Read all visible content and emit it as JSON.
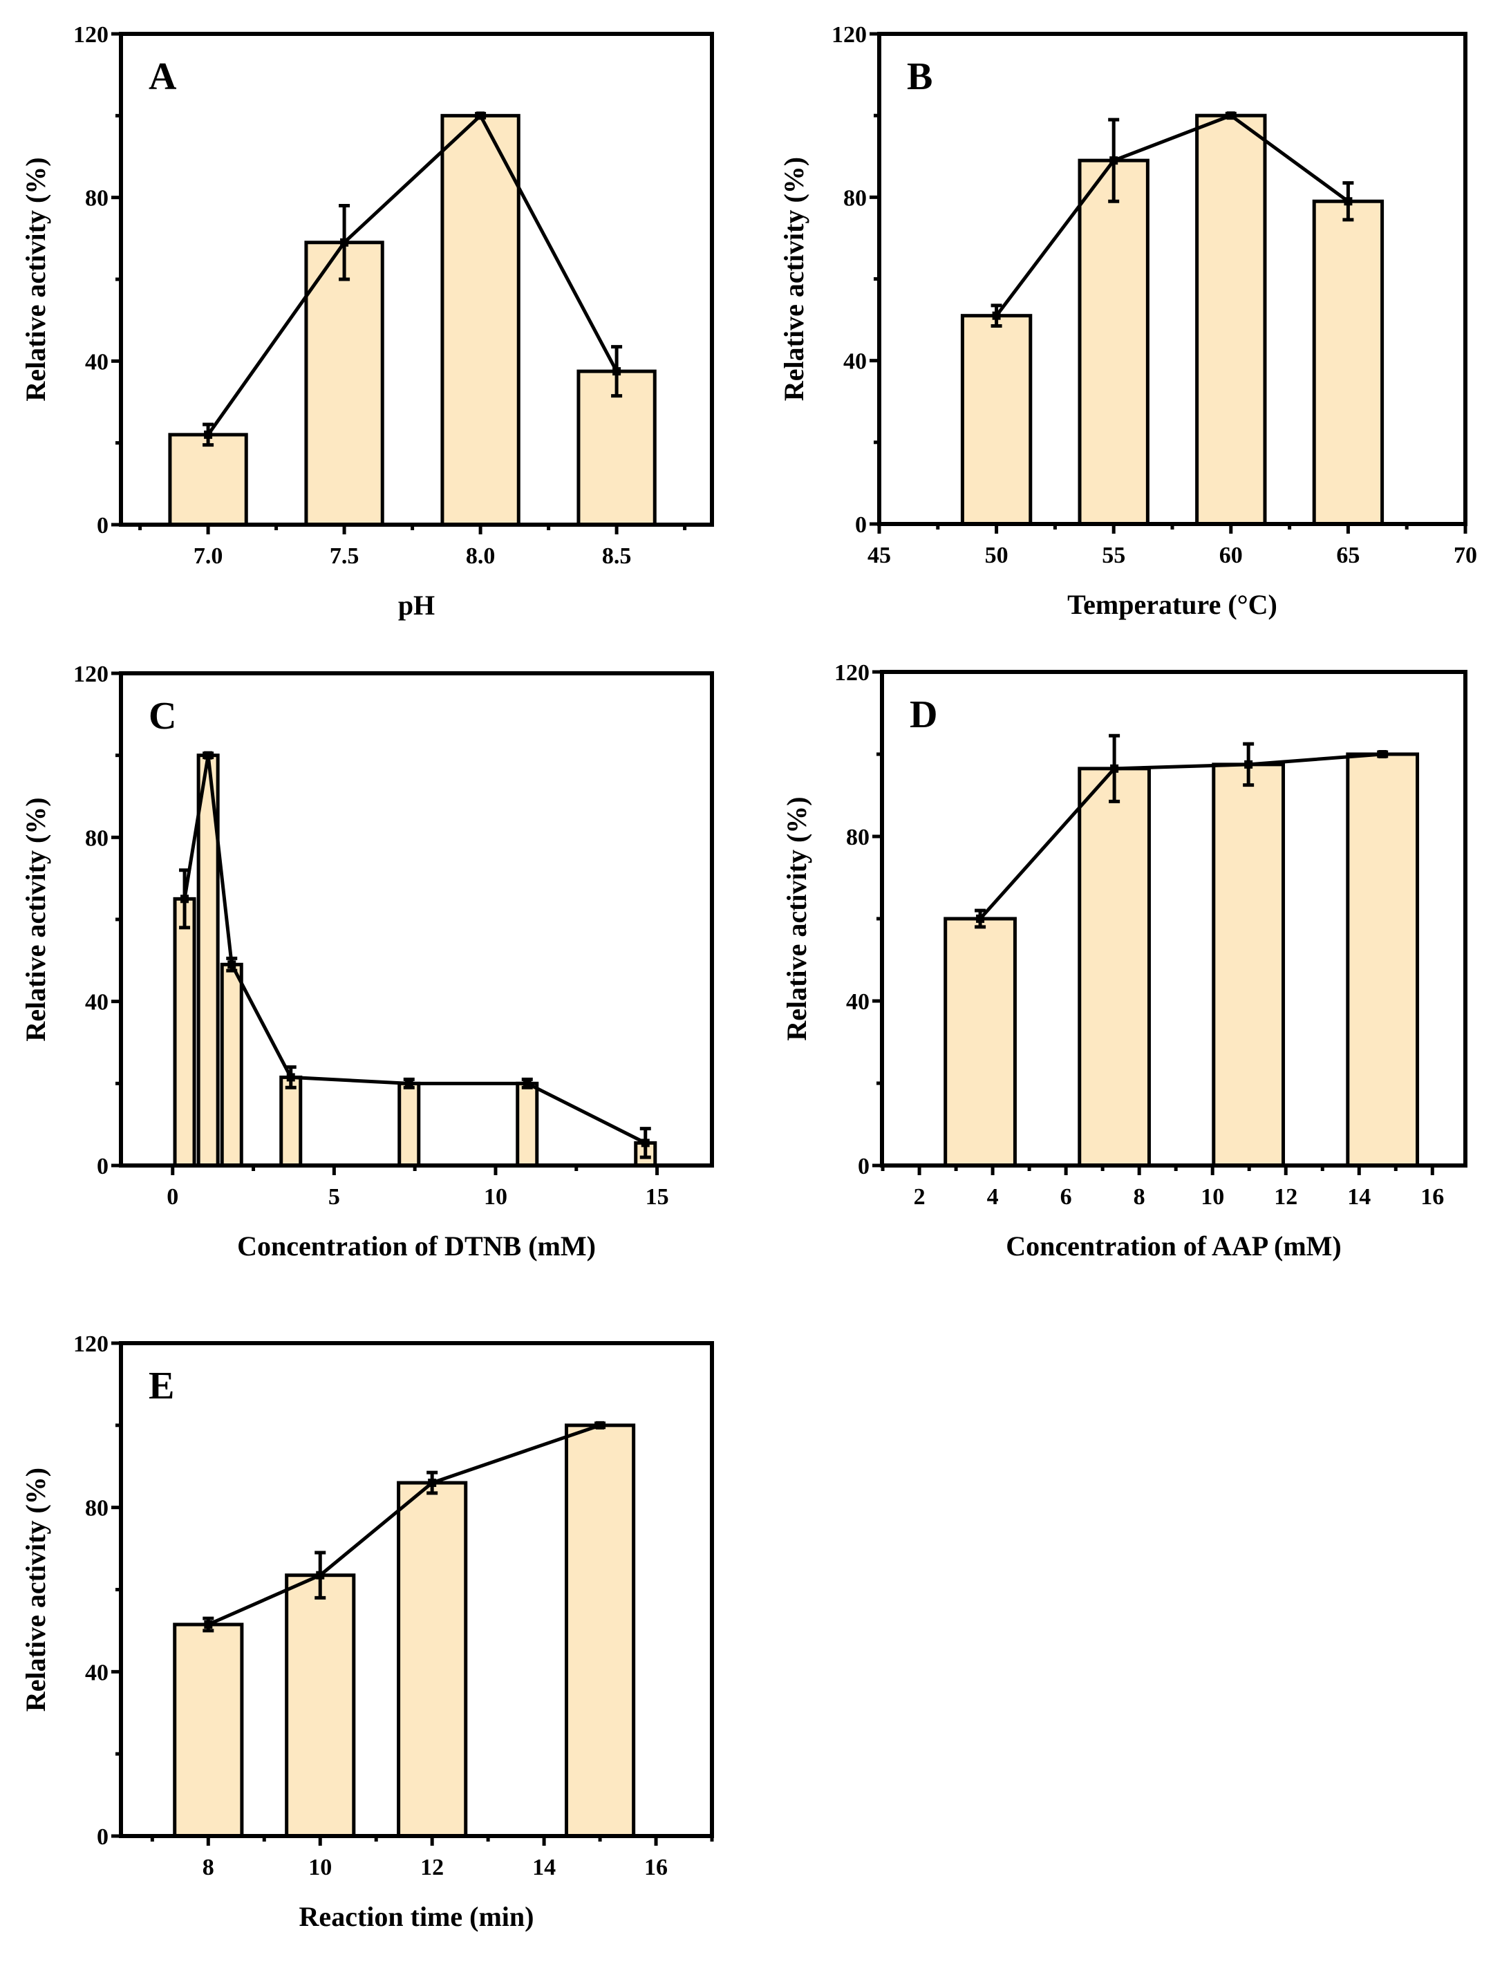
{
  "colors": {
    "bar_fill": "#FDE8C2",
    "stroke": "#000000"
  },
  "chart_data": [
    {
      "type": "bar",
      "panel_label": "A",
      "xlabel": "pH",
      "ylabel": "Relative activity (%)",
      "xlim": [
        6.68,
        8.85
      ],
      "ylim": [
        0,
        120
      ],
      "xticks": [
        7.0,
        7.5,
        8.0,
        8.5
      ],
      "xtick_labels": [
        "7.0",
        "7.5",
        "8.0",
        "8.5"
      ],
      "yticks": [
        0,
        40,
        80,
        120
      ],
      "bar_width": 0.28,
      "x": [
        7.0,
        7.5,
        8.0,
        8.5
      ],
      "values": [
        22,
        69,
        100,
        37.5
      ],
      "errors": [
        2.5,
        9,
        0.5,
        6
      ]
    },
    {
      "type": "bar",
      "panel_label": "B",
      "xlabel": "Temperature (°C)",
      "ylabel": "Relative activity (%)",
      "xlim": [
        45,
        70
      ],
      "ylim": [
        0,
        120
      ],
      "xticks": [
        45,
        50,
        55,
        60,
        65,
        70
      ],
      "xtick_labels": [
        "45",
        "50",
        "55",
        "60",
        "65",
        "70"
      ],
      "yticks": [
        0,
        40,
        80,
        120
      ],
      "bar_width": 2.9,
      "x": [
        50,
        55,
        60,
        65
      ],
      "values": [
        51,
        89,
        100,
        79
      ],
      "errors": [
        2.5,
        10,
        0.5,
        4.5
      ]
    },
    {
      "type": "bar",
      "panel_label": "C",
      "xlabel": "Concentration of DTNB (mM)",
      "ylabel": "Relative activity (%)",
      "xlim": [
        -1.6,
        16.7
      ],
      "ylim": [
        0,
        120
      ],
      "xticks": [
        0,
        5,
        10,
        15
      ],
      "xtick_labels": [
        "0",
        "5",
        "10",
        "15"
      ],
      "yticks": [
        0,
        40,
        80,
        120
      ],
      "bar_width": 0.6,
      "x": [
        0.37,
        1.1,
        1.83,
        3.66,
        7.32,
        10.98,
        14.64
      ],
      "values": [
        65,
        100,
        49,
        21.5,
        20,
        20,
        5.5
      ],
      "errors": [
        7,
        0.5,
        1.5,
        2.5,
        1,
        1,
        3.5
      ]
    },
    {
      "type": "bar",
      "panel_label": "D",
      "xlabel": "Concentration of AAP (mM)",
      "ylabel": "Relative activity (%)",
      "xlim": [
        0.98,
        16.9
      ],
      "ylim": [
        0,
        120
      ],
      "xticks": [
        2,
        4,
        6,
        8,
        10,
        12,
        14,
        16
      ],
      "xtick_labels": [
        "2",
        "4",
        "6",
        "8",
        "10",
        "12",
        "14",
        "16"
      ],
      "yticks": [
        0,
        40,
        80,
        120
      ],
      "bar_width": 1.9,
      "x": [
        3.66,
        7.32,
        10.98,
        14.64
      ],
      "values": [
        60,
        96.5,
        97.5,
        100
      ],
      "errors": [
        2,
        8,
        5,
        0.5
      ]
    },
    {
      "type": "bar",
      "panel_label": "E",
      "xlabel": "Reaction time (min)",
      "ylabel": "Relative activity (%)",
      "xlim": [
        6.44,
        17.0
      ],
      "ylim": [
        0,
        120
      ],
      "xticks": [
        8,
        10,
        12,
        14,
        16
      ],
      "xtick_labels": [
        "8",
        "10",
        "12",
        "14",
        "16"
      ],
      "yticks": [
        0,
        40,
        80,
        120
      ],
      "bar_width": 1.2,
      "x": [
        8,
        10,
        12,
        15
      ],
      "values": [
        51.5,
        63.5,
        86,
        100
      ],
      "errors": [
        1.5,
        5.5,
        2.5,
        0.5
      ]
    }
  ]
}
